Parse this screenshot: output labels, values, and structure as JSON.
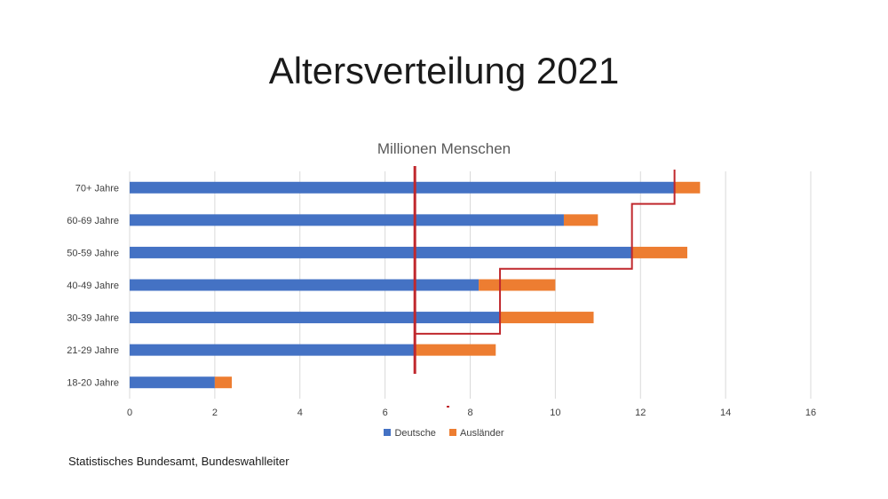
{
  "slide": {
    "title": "Altersverteilung 2021",
    "source": "Statistisches Bundesamt, Bundeswahlleiter"
  },
  "chart_data": {
    "type": "bar",
    "orientation": "horizontal",
    "stacked": true,
    "title": "Millionen Menschen",
    "xlabel": "",
    "ylabel": "",
    "categories": [
      "70+ Jahre",
      "60-69 Jahre",
      "50-59 Jahre",
      "40-49 Jahre",
      "30-39 Jahre",
      "21-29 Jahre",
      "18-20 Jahre"
    ],
    "series": [
      {
        "name": "Deutsche",
        "color": "#4472C4",
        "values": [
          12.8,
          10.2,
          11.8,
          8.2,
          8.7,
          6.7,
          2.0
        ]
      },
      {
        "name": "Ausländer",
        "color": "#ED7D31",
        "values": [
          0.6,
          0.8,
          1.3,
          1.8,
          2.2,
          1.9,
          0.4
        ]
      }
    ],
    "xlim": [
      0,
      16
    ],
    "xticks": [
      0,
      2,
      4,
      6,
      8,
      10,
      12,
      14,
      16
    ],
    "grid": true,
    "legend_position": "bottom",
    "annotations": {
      "color": "#C0282D",
      "median_line_x": 6.7,
      "step_line_x": [
        6.7,
        8.7,
        11.8,
        12.8
      ]
    }
  }
}
